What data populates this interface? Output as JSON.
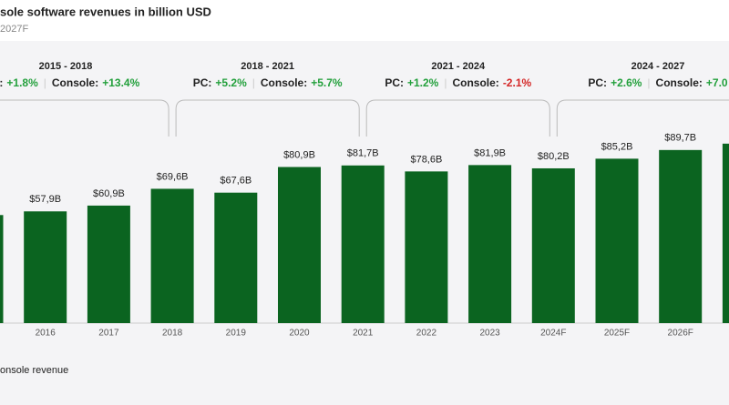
{
  "chart_data": {
    "type": "bar",
    "title": "sole software revenues in billion USD",
    "subtitle": "2027F",
    "categories": [
      null,
      "2016",
      "2017",
      "2018",
      "2019",
      "2020",
      "2021",
      "2022",
      "2023",
      "2024F",
      "2025F",
      "2026F",
      null
    ],
    "values": [
      56,
      57.9,
      60.9,
      69.6,
      67.6,
      80.9,
      81.7,
      78.6,
      81.9,
      80.2,
      85.2,
      89.7,
      93
    ],
    "value_labels": [
      null,
      "$57,9B",
      "$60,9B",
      "$69,6B",
      "$67,6B",
      "$80,9B",
      "$81,7B",
      "$78,6B",
      "$81,9B",
      "$80,2B",
      "$85,2B",
      "$89,7B",
      null
    ],
    "color": "#0b6420",
    "ylim": [
      0,
      100
    ],
    "legend": [
      "onsole revenue"
    ],
    "annotations": [
      {
        "period": "2015 - 2018",
        "pc_label": "C:",
        "pc_value": "+1.8%",
        "pc_color": "#23a03c",
        "console_label": "Console:",
        "console_value": "+13.4%",
        "console_color": "#23a03c"
      },
      {
        "period": "2018 - 2021",
        "pc_label": "PC:",
        "pc_value": "+5.2%",
        "pc_color": "#23a03c",
        "console_label": "Console:",
        "console_value": "+5.7%",
        "console_color": "#23a03c"
      },
      {
        "period": "2021 - 2024",
        "pc_label": "PC:",
        "pc_value": "+1.2%",
        "pc_color": "#23a03c",
        "console_label": "Console:",
        "console_value": "-2.1%",
        "console_color": "#d42525"
      },
      {
        "period": "2024 - 2027",
        "pc_label": "PC:",
        "pc_value": "+2.6%",
        "pc_color": "#23a03c",
        "console_label": "Console:",
        "console_value": "+7.0",
        "console_color": "#23a03c"
      }
    ]
  }
}
